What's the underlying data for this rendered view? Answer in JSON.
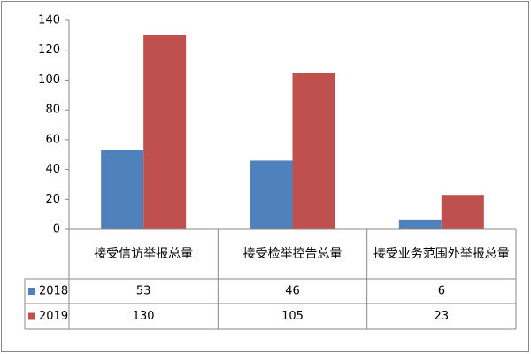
{
  "chart_data": {
    "type": "bar",
    "categories": [
      "接受信访举报总量",
      "接受检举控告总量",
      "接受业务范围外举报总量"
    ],
    "series": [
      {
        "name": "2018",
        "color": "#4f81bd",
        "values": [
          53,
          46,
          6
        ]
      },
      {
        "name": "2019",
        "color": "#c0504d",
        "values": [
          130,
          105,
          23
        ]
      }
    ],
    "ylim": [
      0,
      140
    ],
    "yticks": [
      0,
      20,
      40,
      60,
      80,
      100,
      120,
      140
    ],
    "grid": false
  }
}
